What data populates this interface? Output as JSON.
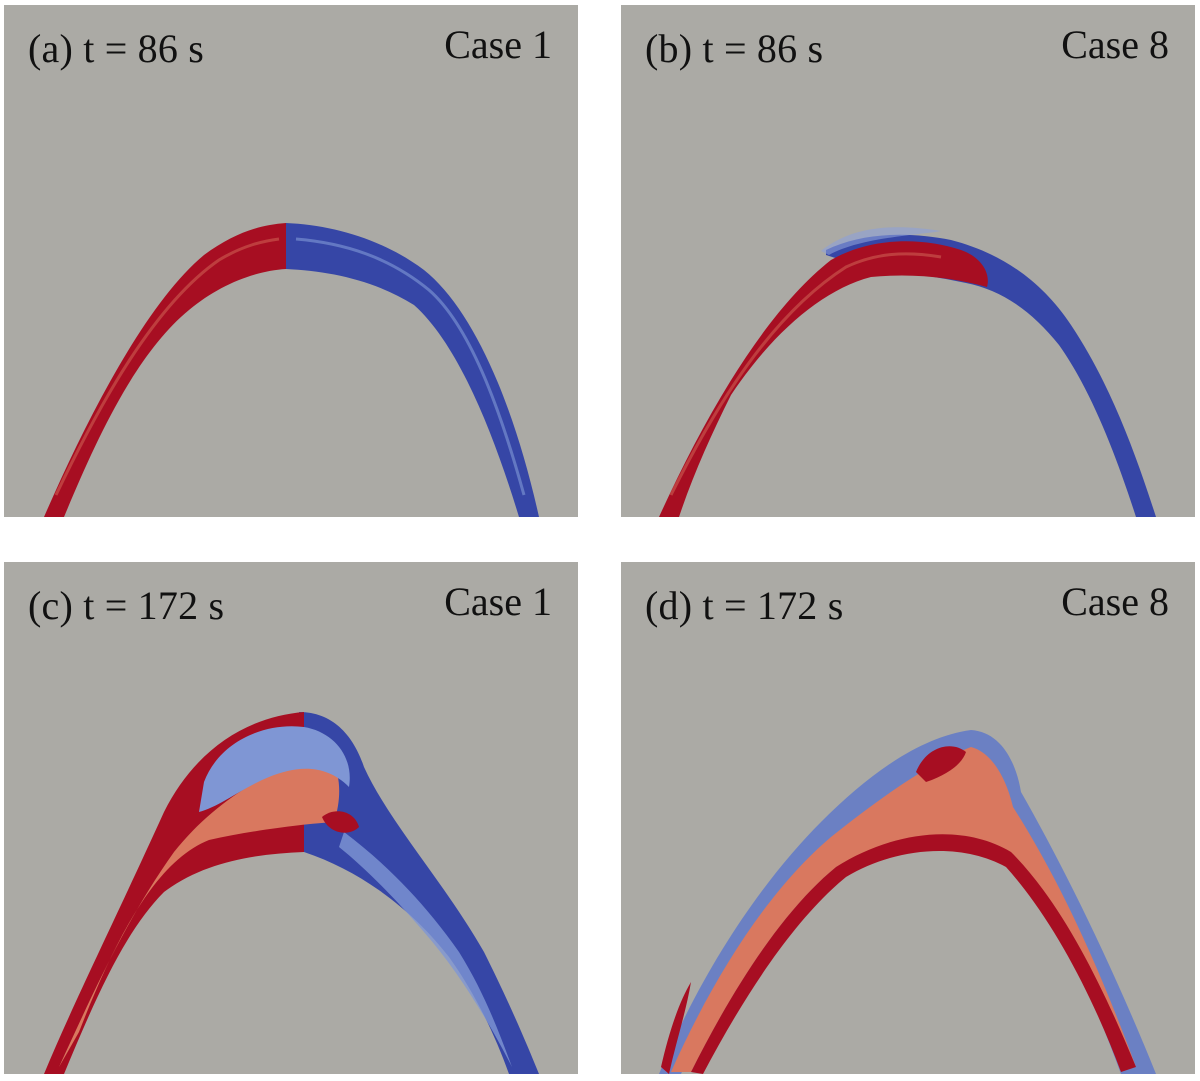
{
  "figure": {
    "panels": [
      {
        "id": "a",
        "time_label": "(a) t = 86 s",
        "case_label": "Case 1"
      },
      {
        "id": "b",
        "time_label": "(b) t = 86 s",
        "case_label": "Case 8"
      },
      {
        "id": "c",
        "time_label": "(c) t = 172 s",
        "case_label": "Case 1"
      },
      {
        "id": "d",
        "time_label": "(d) t = 172 s",
        "case_label": "Case 8"
      }
    ]
  },
  "colors": {
    "background": "#abaaa5",
    "red": "#a70e22",
    "blue": "#3646a6",
    "light_red": "#d9785f",
    "light_blue": "#7f96d4"
  }
}
